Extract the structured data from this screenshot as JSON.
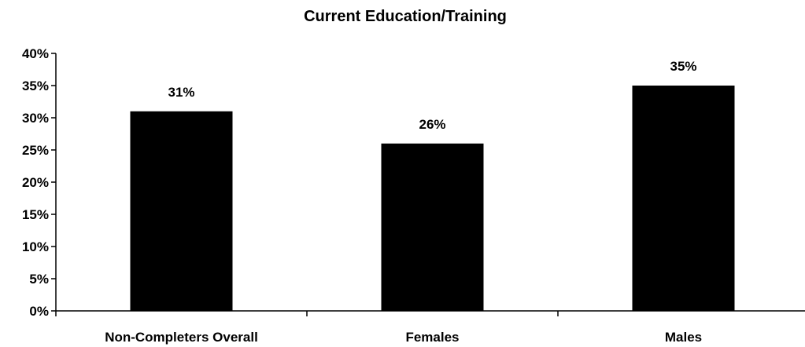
{
  "chart_data": {
    "type": "bar",
    "title": "Current Education/Training",
    "xlabel": "",
    "ylabel": "",
    "categories": [
      "Non-Completers Overall",
      "Females",
      "Males"
    ],
    "values": [
      31,
      26,
      35
    ],
    "data_labels": [
      "31%",
      "26%",
      "35%"
    ],
    "ylim": [
      0,
      40
    ],
    "yticks": [
      0,
      5,
      10,
      15,
      20,
      25,
      30,
      35,
      40
    ],
    "ytick_labels": [
      "0%",
      "5%",
      "10%",
      "15%",
      "20%",
      "25%",
      "30%",
      "35%",
      "40%"
    ],
    "grid": false,
    "legend": "none",
    "bar_color": "#000000"
  }
}
